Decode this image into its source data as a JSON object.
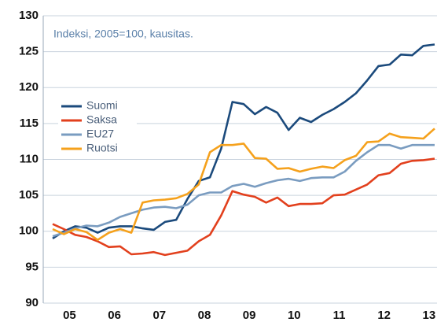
{
  "chart_data": {
    "type": "line",
    "annotation": "Indeksi, 2005=100, kausitas.",
    "categories": [
      null,
      "05",
      null,
      null,
      null,
      "06",
      null,
      null,
      null,
      "07",
      null,
      null,
      null,
      "08",
      null,
      null,
      null,
      "09",
      null,
      null,
      null,
      "10",
      null,
      null,
      null,
      "11",
      null,
      null,
      null,
      "12",
      null,
      null,
      null,
      "13",
      null
    ],
    "series": [
      {
        "name": "Suomi",
        "color": "#1b4a7c",
        "values": [
          99,
          100,
          100.7,
          100.5,
          99.8,
          100.5,
          100.7,
          100.7,
          100.4,
          100.2,
          101.3,
          101.6,
          104.5,
          107,
          107.5,
          111.5,
          118,
          117.7,
          116.3,
          117.3,
          116.5,
          114.1,
          115.8,
          115.2,
          116.2,
          117,
          118,
          119.2,
          121,
          123,
          123.2,
          124.6,
          124.5,
          125.8,
          126
        ]
      },
      {
        "name": "Saksa",
        "color": "#e2401d",
        "values": [
          101,
          100.3,
          99.5,
          99.2,
          98.6,
          97.8,
          97.9,
          96.8,
          96.9,
          97.1,
          96.7,
          97,
          97.3,
          98.6,
          99.5,
          102.2,
          105.6,
          105.1,
          104.8,
          104,
          104.7,
          103.5,
          103.8,
          103.8,
          103.9,
          105,
          105.1,
          105.8,
          106.5,
          107.8,
          108.1,
          109.4,
          109.8,
          109.9,
          110.1
        ]
      },
      {
        "name": "EU27",
        "color": "#7a9cc0",
        "values": [
          99.3,
          99.8,
          100.4,
          100.8,
          100.7,
          101.2,
          102,
          102.5,
          103,
          103.3,
          103.4,
          103.2,
          103.7,
          105,
          105.4,
          105.4,
          106.3,
          106.6,
          106.2,
          106.7,
          107.1,
          107.3,
          107,
          107.4,
          107.5,
          107.5,
          108.3,
          109.8,
          111,
          112,
          112,
          111.5,
          112,
          112,
          112
        ]
      },
      {
        "name": "Ruotsi",
        "color": "#f5a11c",
        "values": [
          100.3,
          99.6,
          100.3,
          99.9,
          98.8,
          99.8,
          100.3,
          99.8,
          104,
          104.3,
          104.4,
          104.6,
          105.2,
          106.5,
          111,
          112,
          112,
          112.2,
          110.2,
          110.1,
          108.7,
          108.8,
          108.3,
          108.7,
          109,
          108.8,
          109.9,
          110.5,
          112.4,
          112.5,
          113.6,
          113.1,
          113,
          112.9,
          114.3
        ]
      }
    ],
    "ylim": [
      90,
      130
    ],
    "yticks": [
      90,
      95,
      100,
      105,
      110,
      115,
      120,
      125,
      130
    ],
    "grid": true,
    "legend": "center left"
  }
}
